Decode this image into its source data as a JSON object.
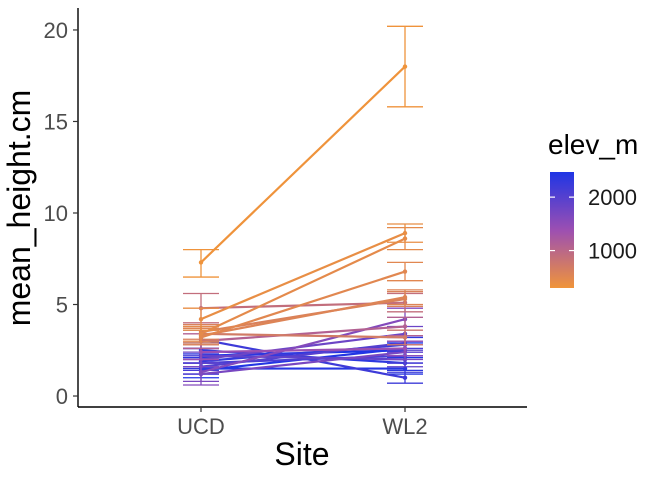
{
  "chart_data": {
    "type": "line",
    "xlabel": "Site",
    "ylabel": "mean_height.cm",
    "categories": [
      "UCD",
      "WL2"
    ],
    "ylim": [
      -0.6,
      21.2
    ],
    "yticks": [
      0,
      5,
      10,
      15,
      20
    ],
    "grid": false,
    "legend": {
      "title": "elev_m",
      "position": "right",
      "scale_min": 300,
      "scale_max": 2470,
      "low_color": "#F0943A",
      "mid_color": "#9C4FB2",
      "high_color": "#1F35E5",
      "breaks": [
        2000,
        1000
      ]
    },
    "series": [
      {
        "elev": 313,
        "ucd": {
          "mean": 7.3,
          "lo": 6.5,
          "hi": 8.0
        },
        "wl2": {
          "mean": 18.0,
          "lo": 15.8,
          "hi": 20.2
        }
      },
      {
        "elev": 400,
        "ucd": {
          "mean": 4.2,
          "lo": 3.6,
          "hi": 4.8
        },
        "wl2": {
          "mean": 8.9,
          "lo": 8.4,
          "hi": 9.4
        }
      },
      {
        "elev": 450,
        "ucd": {
          "mean": 3.4,
          "lo": 3.0,
          "hi": 3.8
        },
        "wl2": {
          "mean": 8.6,
          "lo": 8.0,
          "hi": 9.2
        }
      },
      {
        "elev": 500,
        "ucd": {
          "mean": 3.2,
          "lo": 2.8,
          "hi": 3.6
        },
        "wl2": {
          "mean": 6.8,
          "lo": 6.3,
          "hi": 7.3
        }
      },
      {
        "elev": 550,
        "ucd": {
          "mean": 3.3,
          "lo": 2.9,
          "hi": 3.7
        },
        "wl2": {
          "mean": 5.4,
          "lo": 5.0,
          "hi": 5.8
        }
      },
      {
        "elev": 600,
        "ucd": {
          "mean": 3.5,
          "lo": 3.1,
          "hi": 3.9
        },
        "wl2": {
          "mean": 5.3,
          "lo": 4.9,
          "hi": 5.7
        }
      },
      {
        "elev": 700,
        "ucd": {
          "mean": 3.4,
          "lo": 3.0,
          "hi": 3.8
        },
        "wl2": {
          "mean": 3.2,
          "lo": 2.8,
          "hi": 3.6
        }
      },
      {
        "elev": 900,
        "ucd": {
          "mean": 4.8,
          "lo": 4.0,
          "hi": 5.6
        },
        "wl2": {
          "mean": 5.1,
          "lo": 4.6,
          "hi": 5.6
        }
      },
      {
        "elev": 1100,
        "ucd": {
          "mean": 3.0,
          "lo": 2.6,
          "hi": 3.4
        },
        "wl2": {
          "mean": 3.8,
          "lo": 3.3,
          "hi": 4.3
        }
      },
      {
        "elev": 1400,
        "ucd": {
          "mean": 2.4,
          "lo": 2.0,
          "hi": 2.8
        },
        "wl2": {
          "mean": 2.6,
          "lo": 2.2,
          "hi": 3.0
        }
      },
      {
        "elev": 1600,
        "ucd": {
          "mean": 1.3,
          "lo": 0.6,
          "hi": 2.0
        },
        "wl2": {
          "mean": 4.2,
          "lo": 3.6,
          "hi": 4.8
        }
      },
      {
        "elev": 1700,
        "ucd": {
          "mean": 1.2,
          "lo": 0.8,
          "hi": 1.6
        },
        "wl2": {
          "mean": 2.4,
          "lo": 2.0,
          "hi": 2.8
        }
      },
      {
        "elev": 1800,
        "ucd": {
          "mean": 2.0,
          "lo": 1.6,
          "hi": 2.4
        },
        "wl2": {
          "mean": 3.4,
          "lo": 3.0,
          "hi": 3.8
        }
      },
      {
        "elev": 1900,
        "ucd": {
          "mean": 2.2,
          "lo": 1.8,
          "hi": 2.6
        },
        "wl2": {
          "mean": 2.0,
          "lo": 1.6,
          "hi": 2.4
        }
      },
      {
        "elev": 2000,
        "ucd": {
          "mean": 1.6,
          "lo": 1.2,
          "hi": 2.0
        },
        "wl2": {
          "mean": 2.9,
          "lo": 2.5,
          "hi": 3.3
        }
      },
      {
        "elev": 2100,
        "ucd": {
          "mean": 1.8,
          "lo": 1.4,
          "hi": 2.2
        },
        "wl2": {
          "mean": 2.2,
          "lo": 1.8,
          "hi": 2.6
        }
      },
      {
        "elev": 2200,
        "ucd": {
          "mean": 3.1,
          "lo": 2.6,
          "hi": 3.6
        },
        "wl2": {
          "mean": 1.0,
          "lo": 0.7,
          "hi": 1.3
        }
      },
      {
        "elev": 2300,
        "ucd": {
          "mean": 1.9,
          "lo": 1.5,
          "hi": 2.3
        },
        "wl2": {
          "mean": 2.8,
          "lo": 2.4,
          "hi": 3.2
        }
      },
      {
        "elev": 2350,
        "ucd": {
          "mean": 2.5,
          "lo": 2.1,
          "hi": 2.9
        },
        "wl2": {
          "mean": 1.8,
          "lo": 1.4,
          "hi": 2.2
        }
      },
      {
        "elev": 2400,
        "ucd": {
          "mean": 1.5,
          "lo": 1.2,
          "hi": 1.8
        },
        "wl2": {
          "mean": 1.5,
          "lo": 1.2,
          "hi": 1.8
        }
      },
      {
        "elev": 2440,
        "ucd": {
          "mean": 1.4,
          "lo": 1.0,
          "hi": 1.8
        },
        "wl2": {
          "mean": 2.6,
          "lo": 2.2,
          "hi": 3.0
        }
      },
      {
        "elev": 2470,
        "ucd": {
          "mean": 2.2,
          "lo": 1.8,
          "hi": 2.6
        },
        "wl2": {
          "mean": 2.5,
          "lo": 2.1,
          "hi": 2.9
        }
      }
    ]
  }
}
